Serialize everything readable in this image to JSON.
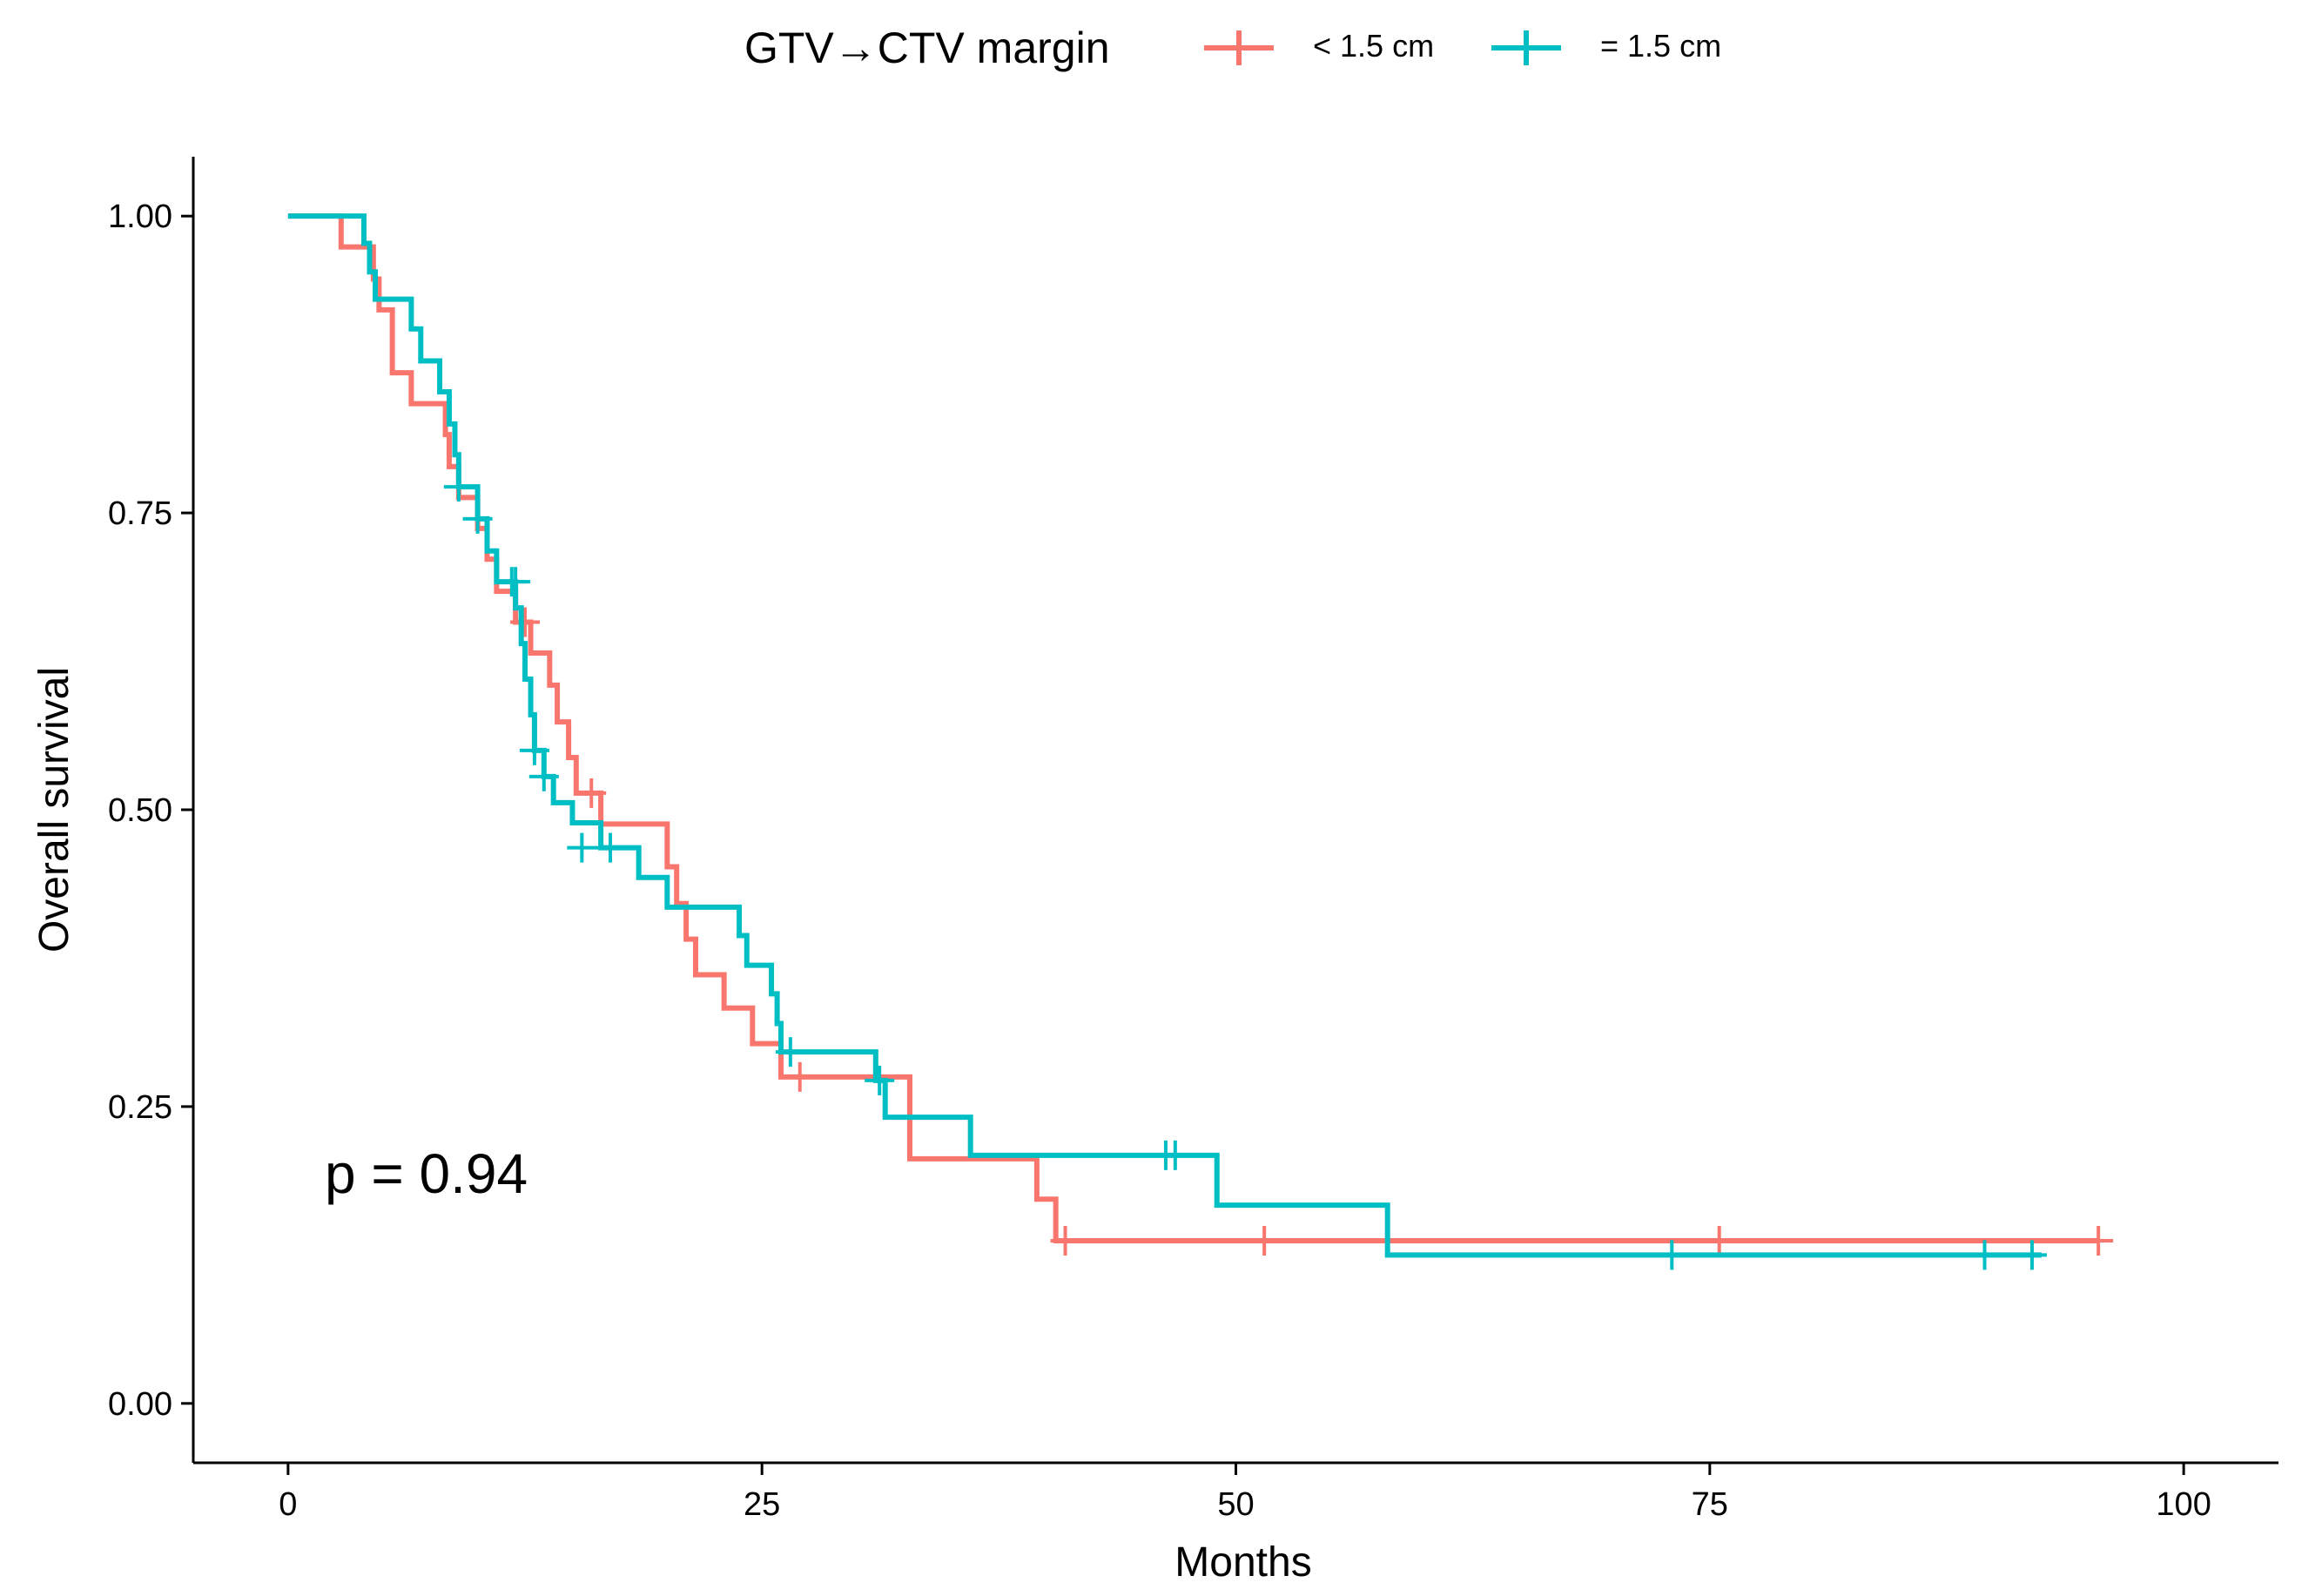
{
  "chart_data": {
    "type": "line",
    "subtype": "kaplan-meier",
    "xlabel": "Months",
    "ylabel": "Overall survival",
    "xlim": [
      -5,
      105
    ],
    "ylim": [
      -0.05,
      1.05
    ],
    "xticks": [
      0,
      25,
      50,
      75,
      100
    ],
    "xtick_labels": [
      "0",
      "25",
      "50",
      "75",
      "100"
    ],
    "yticks": [
      0,
      0.25,
      0.5,
      0.75,
      1.0
    ],
    "ytick_labels": [
      "0.00",
      "0.25",
      "0.50",
      "0.75",
      "1.00"
    ],
    "grid": false,
    "legend": {
      "title": "GTV→CTV margin",
      "position": "top"
    },
    "annotation": "p = 0.94",
    "series": [
      {
        "name": "< 1.5 cm",
        "color": "#F8766D",
        "steps": [
          [
            0,
            1.0
          ],
          [
            2.8,
            0.974
          ],
          [
            4.5,
            0.947
          ],
          [
            4.8,
            0.921
          ],
          [
            5.5,
            0.895
          ],
          [
            5.5,
            0.868
          ],
          [
            6.5,
            0.842
          ],
          [
            8.0,
            0.842
          ],
          [
            8.3,
            0.816
          ],
          [
            8.5,
            0.789
          ],
          [
            9.0,
            0.763
          ],
          [
            10.0,
            0.737
          ],
          [
            10.5,
            0.711
          ],
          [
            11.0,
            0.684
          ],
          [
            12.0,
            0.658
          ],
          [
            12.8,
            0.632
          ],
          [
            13.8,
            0.605
          ],
          [
            14.2,
            0.574
          ],
          [
            14.8,
            0.544
          ],
          [
            15.2,
            0.514
          ],
          [
            16.5,
            0.488
          ],
          [
            20.0,
            0.452
          ],
          [
            20.5,
            0.421
          ],
          [
            21.0,
            0.391
          ],
          [
            21.5,
            0.361
          ],
          [
            23.0,
            0.333
          ],
          [
            24.5,
            0.303
          ],
          [
            26.0,
            0.275
          ],
          [
            32.8,
            0.206
          ],
          [
            39.5,
            0.172
          ],
          [
            40.5,
            0.137
          ]
        ],
        "end": 95.5,
        "censor": [
          [
            12.5,
            0.658
          ],
          [
            16.0,
            0.514
          ],
          [
            27.0,
            0.275
          ],
          [
            41.0,
            0.137
          ],
          [
            51.5,
            0.137
          ],
          [
            75.5,
            0.137
          ],
          [
            95.5,
            0.137
          ]
        ]
      },
      {
        "name": "= 1.5 cm",
        "color": "#00BFC4",
        "steps": [
          [
            0,
            1.0
          ],
          [
            4.0,
            0.977
          ],
          [
            4.3,
            0.953
          ],
          [
            4.6,
            0.93
          ],
          [
            6.5,
            0.905
          ],
          [
            7.0,
            0.878
          ],
          [
            8.0,
            0.852
          ],
          [
            8.5,
            0.825
          ],
          [
            8.8,
            0.799
          ],
          [
            9.0,
            0.772
          ],
          [
            10.0,
            0.745
          ],
          [
            10.5,
            0.718
          ],
          [
            11.0,
            0.692
          ],
          [
            12.0,
            0.67
          ],
          [
            12.3,
            0.64
          ],
          [
            12.5,
            0.61
          ],
          [
            12.8,
            0.58
          ],
          [
            13.0,
            0.55
          ],
          [
            13.5,
            0.528
          ],
          [
            14.0,
            0.506
          ],
          [
            15.0,
            0.489
          ],
          [
            16.5,
            0.468
          ],
          [
            18.5,
            0.443
          ],
          [
            20.0,
            0.418
          ],
          [
            23.8,
            0.394
          ],
          [
            24.2,
            0.369
          ],
          [
            25.5,
            0.345
          ],
          [
            25.8,
            0.32
          ],
          [
            26.0,
            0.296
          ],
          [
            31.0,
            0.272
          ],
          [
            31.5,
            0.241
          ],
          [
            36.0,
            0.209
          ],
          [
            49.0,
            0.167
          ],
          [
            58.0,
            0.125
          ]
        ],
        "end": 92.5,
        "censor": [
          [
            9.0,
            0.772
          ],
          [
            10.0,
            0.745
          ],
          [
            11.8,
            0.692
          ],
          [
            12.0,
            0.692
          ],
          [
            13.0,
            0.55
          ],
          [
            13.5,
            0.528
          ],
          [
            15.5,
            0.468
          ],
          [
            17.0,
            0.468
          ],
          [
            26.5,
            0.296
          ],
          [
            31.2,
            0.272
          ],
          [
            46.3,
            0.209
          ],
          [
            46.8,
            0.209
          ],
          [
            73.0,
            0.125
          ],
          [
            89.5,
            0.125
          ],
          [
            92.0,
            0.125
          ]
        ]
      }
    ]
  }
}
